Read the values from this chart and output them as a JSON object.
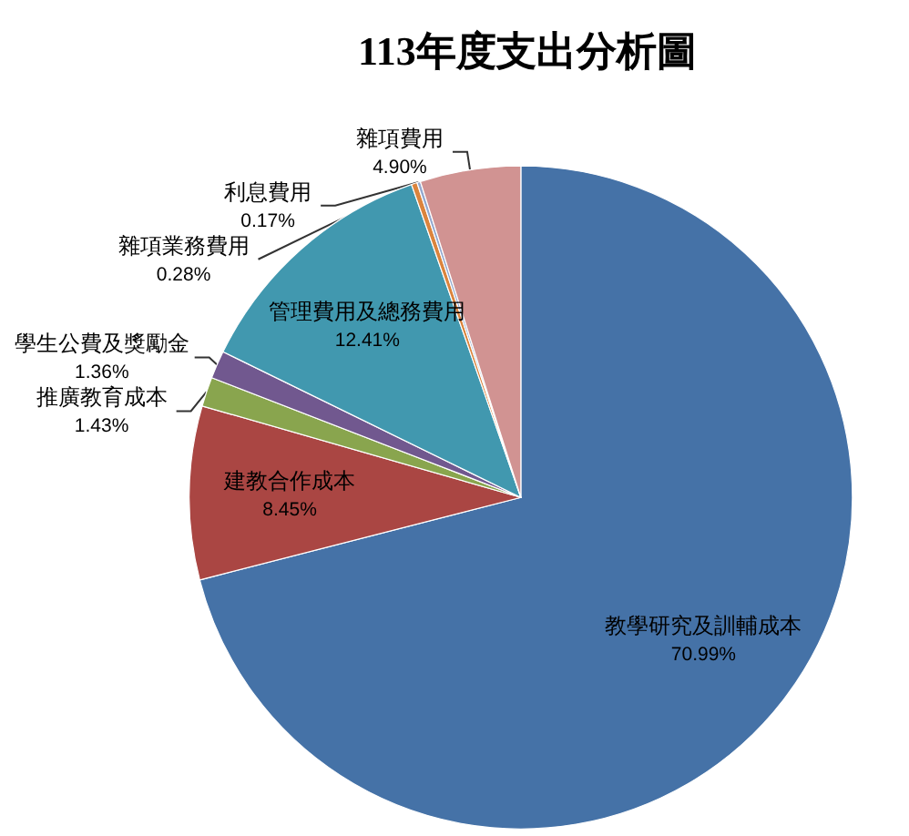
{
  "chart_data": {
    "type": "pie",
    "title": "113年度支出分析圖",
    "categories": [
      "教學研究及訓輔成本",
      "建教合作成本",
      "推廣教育成本",
      "學生公費及獎勵金",
      "管理費用及總務費用",
      "雜項業務費用",
      "利息費用",
      "雜項費用"
    ],
    "values": [
      70.99,
      8.45,
      1.43,
      1.36,
      12.41,
      0.28,
      0.17,
      4.9
    ],
    "colors": [
      "#4572a7",
      "#aa4643",
      "#89a54e",
      "#71588f",
      "#4198af",
      "#db843d",
      "#93a9cf",
      "#d19392"
    ],
    "value_labels": [
      "70.99%",
      "8.45%",
      "1.43%",
      "1.36%",
      "12.41%",
      "0.28%",
      "0.17%",
      "4.90%"
    ],
    "legend": false
  }
}
